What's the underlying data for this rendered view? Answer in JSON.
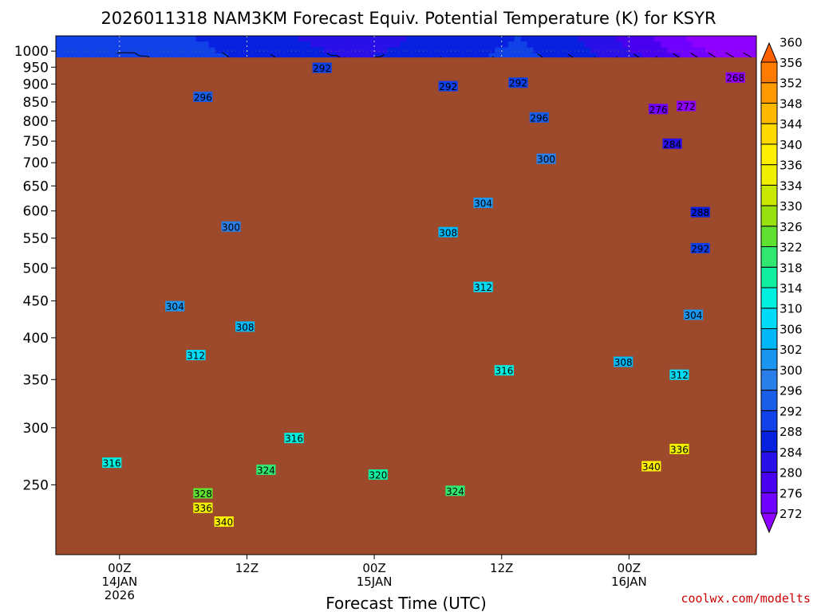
{
  "chart_data": {
    "type": "heatmap",
    "title": "2026011318 NAM3KM Forecast Equiv. Potential Temperature (K) for KSYR",
    "xlabel": "Forecast Time (UTC)",
    "ylabel": "",
    "y_scale": "log",
    "y_reversed": true,
    "ylim": [
      1000,
      200
    ],
    "xlim": [
      "2026-01-13T18:00Z",
      "2026-01-16T12:00Z"
    ],
    "y_ticks": [
      250,
      300,
      350,
      400,
      450,
      500,
      550,
      600,
      650,
      700,
      750,
      800,
      850,
      900,
      950,
      1000
    ],
    "x_ticks": [
      {
        "time": "2026-01-14T00:00Z",
        "lines": [
          "00Z",
          "14JAN",
          "2026"
        ]
      },
      {
        "time": "2026-01-14T12:00Z",
        "lines": [
          "12Z"
        ]
      },
      {
        "time": "2026-01-15T00:00Z",
        "lines": [
          "00Z",
          "15JAN"
        ]
      },
      {
        "time": "2026-01-15T12:00Z",
        "lines": [
          "12Z"
        ]
      },
      {
        "time": "2026-01-16T00:00Z",
        "lines": [
          "00Z",
          "16JAN"
        ]
      }
    ],
    "grid": true,
    "ground": {
      "pressure": 980,
      "color": "#9c4a2b"
    },
    "colorbar": {
      "levels": [
        272,
        276,
        280,
        284,
        288,
        292,
        296,
        300,
        302,
        306,
        310,
        314,
        318,
        322,
        326,
        330,
        334,
        336,
        340,
        344,
        348,
        352,
        356,
        360
      ],
      "colors": [
        "#8e00ff",
        "#7000ff",
        "#4a00f0",
        "#2a10e8",
        "#0820e0",
        "#1040e8",
        "#1a5ee8",
        "#2a7ee8",
        "#1a96f0",
        "#00b8f8",
        "#00dcf8",
        "#00f0e0",
        "#10f0a0",
        "#30e870",
        "#60e030",
        "#98e010",
        "#c8e800",
        "#f0f000",
        "#fff000",
        "#ffd800",
        "#ffb800",
        "#ff9a00",
        "#ff7a00",
        "#ff6000"
      ],
      "extend": "both"
    },
    "contour_labels": [
      {
        "t": 0.21,
        "p": 232,
        "v": 336
      },
      {
        "t": 0.24,
        "p": 222,
        "v": 340
      },
      {
        "t": 0.21,
        "p": 243,
        "v": 328
      },
      {
        "t": 0.3,
        "p": 262,
        "v": 324
      },
      {
        "t": 0.08,
        "p": 268,
        "v": 316
      },
      {
        "t": 0.57,
        "p": 245,
        "v": 324
      },
      {
        "t": 0.46,
        "p": 258,
        "v": 320
      },
      {
        "t": 0.34,
        "p": 290,
        "v": 316
      },
      {
        "t": 0.64,
        "p": 360,
        "v": 316
      },
      {
        "t": 0.2,
        "p": 378,
        "v": 312
      },
      {
        "t": 0.27,
        "p": 414,
        "v": 308
      },
      {
        "t": 0.17,
        "p": 442,
        "v": 304
      },
      {
        "t": 0.61,
        "p": 470,
        "v": 312
      },
      {
        "t": 0.25,
        "p": 570,
        "v": 300
      },
      {
        "t": 0.56,
        "p": 560,
        "v": 308
      },
      {
        "t": 0.61,
        "p": 615,
        "v": 304
      },
      {
        "t": 0.7,
        "p": 708,
        "v": 300
      },
      {
        "t": 0.69,
        "p": 808,
        "v": 296
      },
      {
        "t": 0.21,
        "p": 863,
        "v": 296
      },
      {
        "t": 0.56,
        "p": 893,
        "v": 292
      },
      {
        "t": 0.66,
        "p": 903,
        "v": 292
      },
      {
        "t": 0.38,
        "p": 947,
        "v": 292
      },
      {
        "t": 0.81,
        "p": 370,
        "v": 308
      },
      {
        "t": 0.89,
        "p": 355,
        "v": 312
      },
      {
        "t": 0.91,
        "p": 430,
        "v": 304
      },
      {
        "t": 0.85,
        "p": 265,
        "v": 340
      },
      {
        "t": 0.89,
        "p": 280,
        "v": 336
      },
      {
        "t": 0.92,
        "p": 532,
        "v": 292
      },
      {
        "t": 0.92,
        "p": 597,
        "v": 288
      },
      {
        "t": 0.88,
        "p": 743,
        "v": 284
      },
      {
        "t": 0.86,
        "p": 830,
        "v": 276
      },
      {
        "t": 0.9,
        "p": 838,
        "v": 272
      },
      {
        "t": 0.97,
        "p": 918,
        "v": 268
      }
    ],
    "credit": "coolwx.com/modelts"
  }
}
